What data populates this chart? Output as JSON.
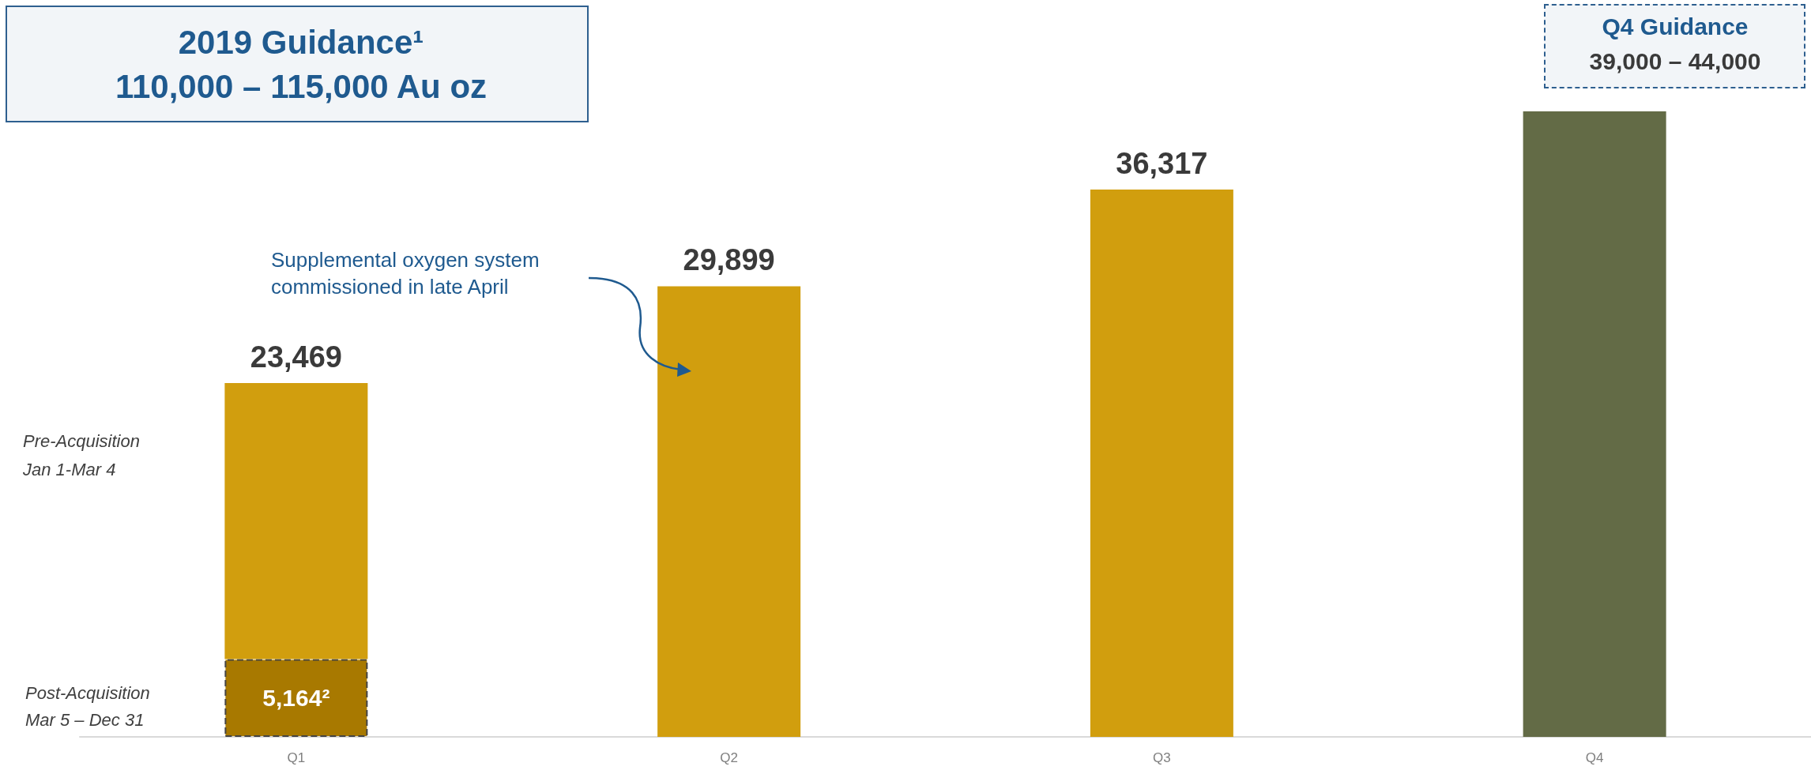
{
  "chart_data": {
    "type": "bar",
    "title": "2019 Guidance¹\n110,000 – 115,000 Au oz",
    "categories": [
      "Q1",
      "Q2",
      "Q3",
      "Q4"
    ],
    "stacked": true,
    "tick_labels": "x",
    "series": [
      {
        "color": "#a87900",
        "values": [
          5164,
          null,
          null,
          null
        ],
        "value_labels": [
          "5,164²",
          null,
          null,
          null
        ]
      },
      {
        "color": "#d19e0e",
        "values": [
          18305,
          29899,
          36317,
          null
        ],
        "value_labels": [
          null,
          "29,899",
          "36,317",
          null
        ]
      },
      {
        "color": "#636b46",
        "values": [
          null,
          null,
          null,
          41500
        ],
        "value_labels": [
          null,
          null,
          null,
          null
        ]
      }
    ],
    "totals": [
      "23,469",
      null,
      null,
      null
    ],
    "annotations": [
      "Supplemental oxygen system\ncommissioned in late April",
      "Pre-Acquisition\nJan 1-Mar 4",
      "Post-Acquisition\nMar 5 – Dec 31",
      "Q4 Guidance",
      "39,000 – 44,000"
    ]
  }
}
